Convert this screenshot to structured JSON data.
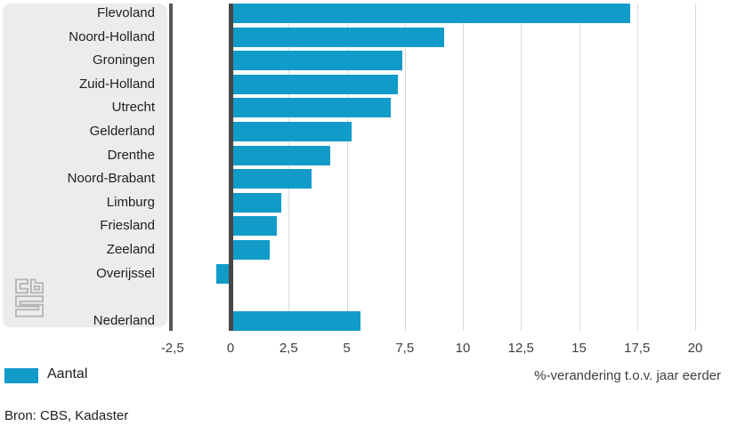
{
  "chart_data": {
    "type": "bar",
    "orientation": "horizontal",
    "title": "",
    "categories": [
      "Flevoland",
      "Noord-Holland",
      "Groningen",
      "Zuid-Holland",
      "Utrecht",
      "Gelderland",
      "Drenthe",
      "Noord-Brabant",
      "Limburg",
      "Friesland",
      "Zeeland",
      "Overijssel",
      "Nederland"
    ],
    "values": [
      17.2,
      9.2,
      7.4,
      7.2,
      6.9,
      5.2,
      4.3,
      3.5,
      2.2,
      2.0,
      1.7,
      -0.6,
      5.6
    ],
    "series_name": "Aantal",
    "last_row_separated": true,
    "xlabel": "%-verandering t.o.v. jaar eerder",
    "xlim": [
      -2.5,
      20
    ],
    "x_ticks": [
      -2.5,
      0,
      2.5,
      5,
      7.5,
      10,
      12.5,
      15,
      17.5,
      20
    ],
    "x_tick_labels": [
      "-2,5",
      "0",
      "2,5",
      "5",
      "7,5",
      "10",
      "12,5",
      "15",
      "17,5",
      "20"
    ],
    "grid": true,
    "legend_position": "bottom-left",
    "bar_color": "#119bc8"
  },
  "legend": {
    "label": "Aantal",
    "color": "#119bc8"
  },
  "axis": {
    "label": "%-verandering t.o.v. jaar eerder"
  },
  "source": {
    "text": "Bron: CBS, Kadaster"
  },
  "colors": {
    "bar": "#119bc8",
    "panel": "#ececec",
    "grid": "#d9d9d9",
    "axis_line": "#58585a",
    "zero_line": "#464646",
    "label_text": "#202020",
    "tick_text": "#3f3f3f",
    "logo": "#b5b5b5"
  }
}
